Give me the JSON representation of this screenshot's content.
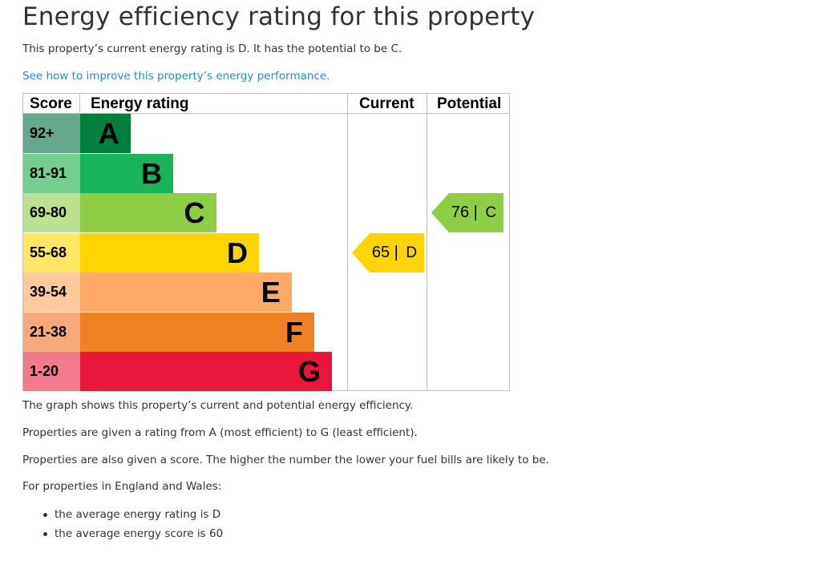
{
  "title": "Energy efficiency rating for this property",
  "intro": "This property’s current energy rating is D. It has the potential to be C.",
  "improve_link": "See how to improve this property’s energy performance.",
  "graph": {
    "headers": {
      "score": "Score",
      "rating": "Energy rating",
      "current": "Current",
      "potential": "Potential"
    },
    "bands": [
      {
        "score": "92+",
        "letter": "A",
        "bar_color": "#007f3d",
        "score_color": "#66a88b",
        "width_pct": 20
      },
      {
        "score": "81-91",
        "letter": "B",
        "bar_color": "#19b459",
        "score_color": "#75cd8f",
        "width_pct": 37
      },
      {
        "score": "69-80",
        "letter": "C",
        "bar_color": "#8dce46",
        "score_color": "#bbe090",
        "width_pct": 54
      },
      {
        "score": "55-68",
        "letter": "D",
        "bar_color": "#ffd500",
        "score_color": "#ffe766",
        "width_pct": 71
      },
      {
        "score": "39-54",
        "letter": "E",
        "bar_color": "#fcaa65",
        "score_color": "#fdca9e",
        "width_pct": 84
      },
      {
        "score": "21-38",
        "letter": "F",
        "bar_color": "#ef8023",
        "score_color": "#f5a97a",
        "width_pct": 93
      },
      {
        "score": "1-20",
        "letter": "G",
        "bar_color": "#e9153b",
        "score_color": "#f27a8c",
        "width_pct": 100
      }
    ],
    "current": {
      "score": "65",
      "separator": "|",
      "letter": "D",
      "band_index": 3,
      "color": "#ffd500"
    },
    "potential": {
      "score": "76",
      "separator": "|",
      "letter": "C",
      "band_index": 2,
      "color": "#8dce46"
    }
  },
  "explain": [
    "The graph shows this property’s current and potential energy efficiency.",
    "Properties are given a rating from A (most efficient) to G (least efficient).",
    "Properties are also given a score. The higher the number the lower your fuel bills are likely to be.",
    "For properties in England and Wales:"
  ],
  "bullets": [
    "the average energy rating is D",
    "the average energy score is 60"
  ]
}
